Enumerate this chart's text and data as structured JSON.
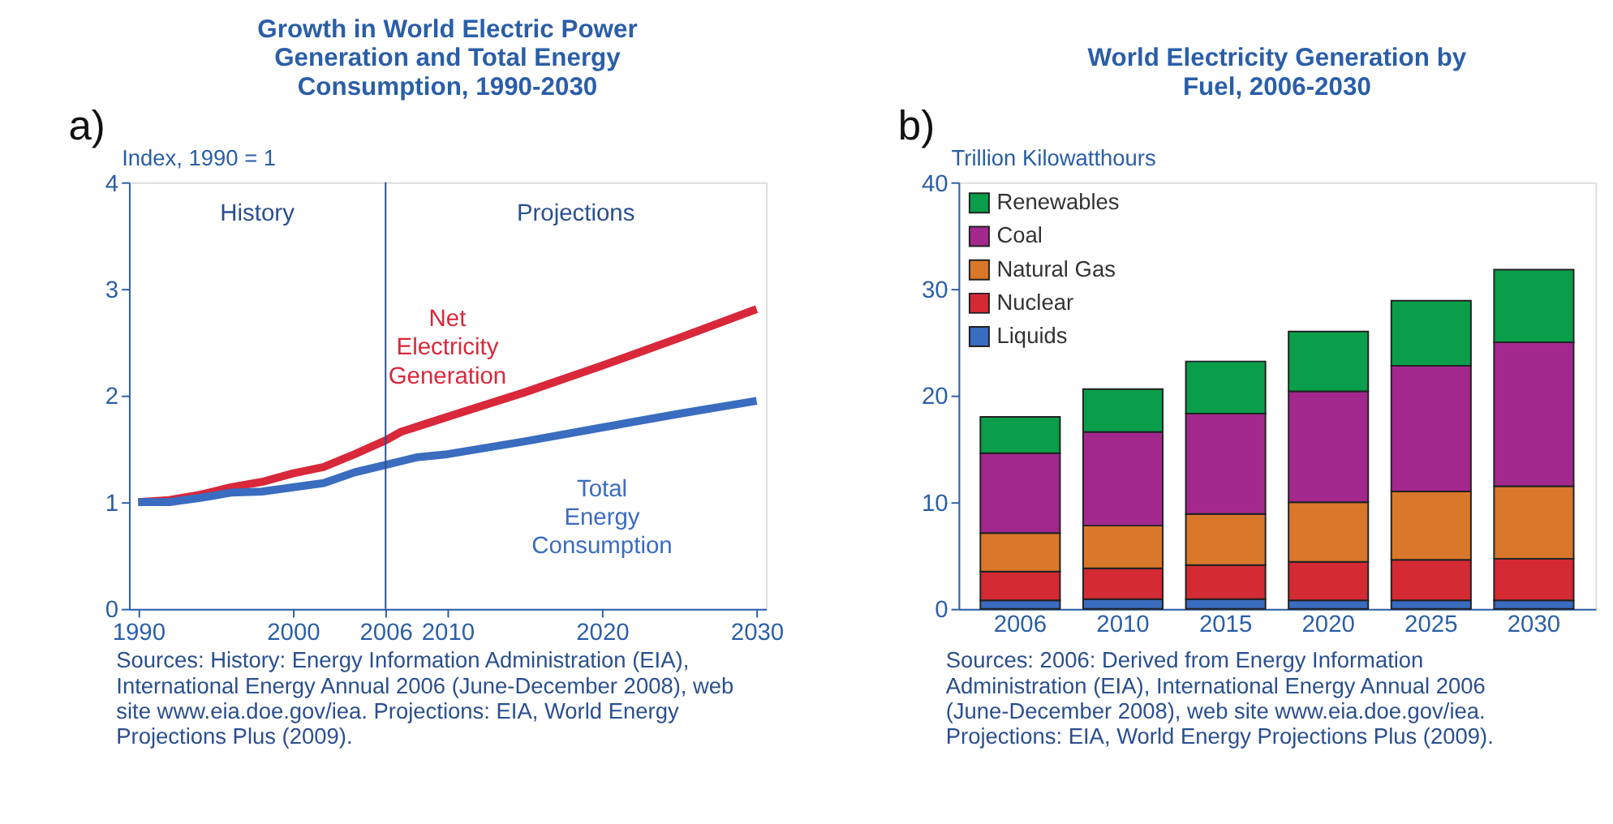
{
  "chart_data": [
    {
      "type": "line",
      "title": "Growth in World Electric Power Generation and Total Energy Consumption, 1990-2030",
      "ylabel": "Index, 1990 = 1",
      "series": [
        {
          "name": "Net Electricity Generation",
          "color": "#d8283a",
          "x": [
            1990,
            1992,
            1994,
            1996,
            1998,
            2000,
            2002,
            2004,
            2006,
            2007,
            2010,
            2015,
            2020,
            2025,
            2030
          ],
          "values": [
            1.0,
            1.02,
            1.07,
            1.14,
            1.19,
            1.27,
            1.33,
            1.45,
            1.58,
            1.66,
            1.8,
            2.03,
            2.28,
            2.54,
            2.81
          ]
        },
        {
          "name": "Total Energy Consumption",
          "color": "#3a6cc0",
          "x": [
            1990,
            1992,
            1994,
            1996,
            1998,
            2000,
            2002,
            2004,
            2006,
            2008,
            2010,
            2015,
            2020,
            2025,
            2030
          ],
          "values": [
            1.0,
            1.0,
            1.04,
            1.09,
            1.1,
            1.14,
            1.18,
            1.28,
            1.35,
            1.42,
            1.45,
            1.57,
            1.7,
            1.83,
            1.95
          ]
        }
      ],
      "xlim": [
        1989.4,
        2030.6
      ],
      "xticks": [
        1990,
        2000,
        2006,
        2010,
        2020,
        2030
      ],
      "ylim": [
        0,
        4
      ],
      "yticks": [
        0,
        1,
        2,
        3,
        4
      ],
      "ref_lines": [
        {
          "axis": "x",
          "value": 2006,
          "color": "#2a4f8f"
        }
      ],
      "grid": false,
      "legend": false,
      "line_style": "solid",
      "annotations": [
        "a)",
        "History",
        "Projections",
        "Sources: History: Energy Information Administration (EIA), International Energy Annual 2006 (June-December 2008), web site www.eia.doe.gov/iea. Projections: EIA, World Energy Projections Plus (2009)."
      ]
    },
    {
      "type": "bar",
      "stacked": true,
      "title": "World Electricity Generation by Fuel, 2006-2030",
      "ylabel": "Trillion Kilowatthours",
      "categories": [
        "2006",
        "2010",
        "2015",
        "2020",
        "2025",
        "2030"
      ],
      "series": [
        {
          "name": "Liquids",
          "color": "#3a6cc0",
          "values": [
            0.8,
            0.9,
            0.9,
            0.8,
            0.8,
            0.8
          ]
        },
        {
          "name": "Nuclear",
          "color": "#d42a33",
          "values": [
            2.7,
            2.9,
            3.2,
            3.6,
            3.8,
            3.9
          ]
        },
        {
          "name": "Natural Gas",
          "color": "#d9782a",
          "values": [
            3.6,
            4.0,
            4.8,
            5.6,
            6.4,
            6.8
          ]
        },
        {
          "name": "Coal",
          "color": "#a3288e",
          "values": [
            7.5,
            8.8,
            9.4,
            10.4,
            11.8,
            13.5
          ]
        },
        {
          "name": "Renewables",
          "color": "#0a9e4a",
          "values": [
            3.4,
            4.0,
            4.9,
            5.6,
            6.1,
            6.8
          ]
        }
      ],
      "ylim": [
        0,
        40
      ],
      "yticks": [
        0,
        10,
        20,
        30,
        40
      ],
      "grid": false,
      "legend": "top left",
      "annotations": [
        "b)",
        "Sources: 2006: Derived from Energy Information Administration (EIA), International Energy Annual 2006 (June-December 2008), web site www.eia.doe.gov/iea. Projections: EIA, World Energy Projections Plus (2009)."
      ]
    }
  ]
}
